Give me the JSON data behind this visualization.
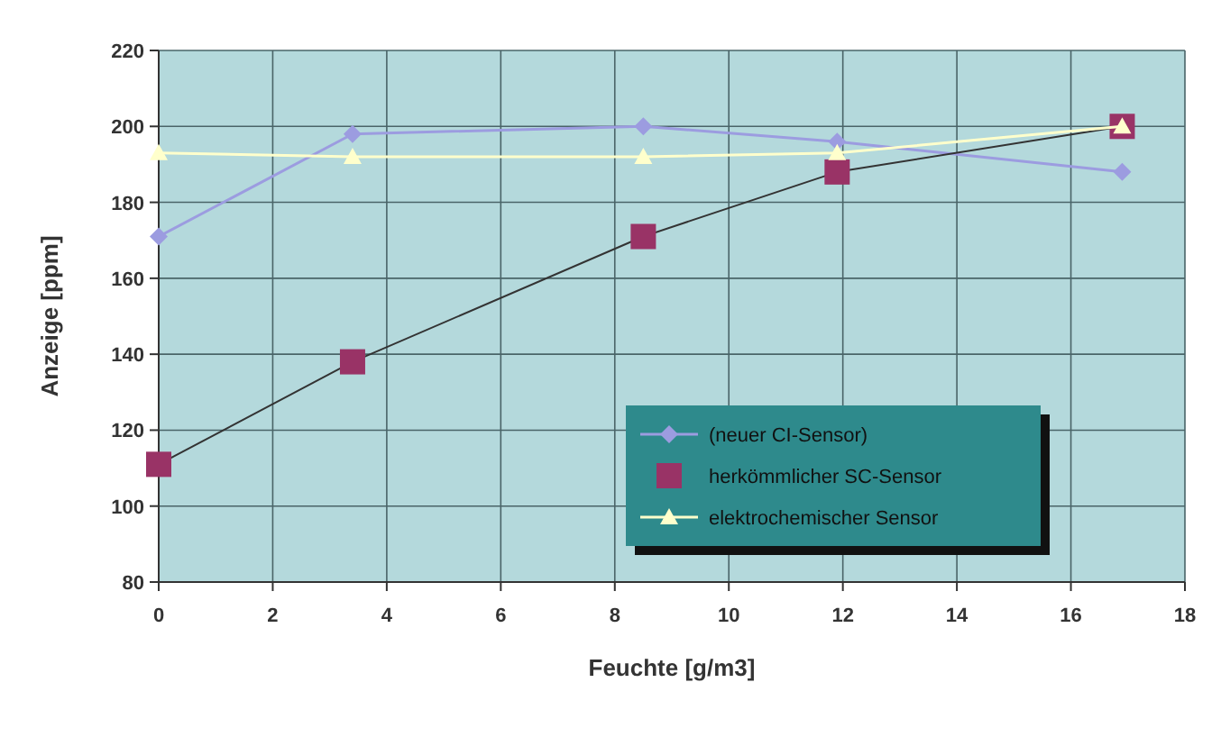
{
  "chart_data": {
    "type": "line",
    "xlabel": "Feuchte [g/m3]",
    "ylabel": "Anzeige [ppm]",
    "xlim": [
      0,
      18
    ],
    "xticks": [
      0,
      2,
      4,
      6,
      8,
      10,
      12,
      14,
      16,
      18
    ],
    "ylim": [
      80,
      220
    ],
    "yticks": [
      80,
      100,
      120,
      140,
      160,
      180,
      200,
      220
    ],
    "grid": true,
    "legend": "bottom right",
    "series": [
      {
        "name": "(neuer CI-Sensor)",
        "color": "#9c9ce0",
        "marker": "diamond",
        "x": [
          0,
          3.4,
          8.5,
          11.9,
          16.9
        ],
        "values": [
          171,
          198,
          200,
          196,
          188
        ]
      },
      {
        "name": "herkömmlicher SC-Sensor",
        "color": "#993366",
        "marker": "square",
        "x": [
          0,
          3.4,
          8.5,
          11.9,
          16.9
        ],
        "values": [
          111,
          138,
          171,
          188,
          200
        ]
      },
      {
        "name": "elektrochemischer Sensor",
        "color": "#ffffcc",
        "marker": "triangle",
        "x": [
          0,
          3.4,
          8.5,
          11.9,
          16.9
        ],
        "values": [
          193,
          192,
          192,
          193,
          200
        ]
      }
    ]
  }
}
